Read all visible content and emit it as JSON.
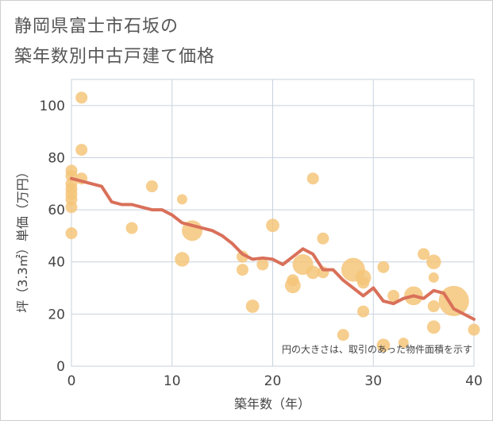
{
  "title": {
    "line1": "静岡県富士市石坂の",
    "line2": "築年数別中古戸建て価格"
  },
  "chart_data": {
    "type": "scatter",
    "xlabel": "築年数（年）",
    "ylabel": "坪（3.3㎡）単価（万円）",
    "xlim": [
      0,
      40
    ],
    "ylim": [
      0,
      110
    ],
    "xticks": [
      0,
      10,
      20,
      30,
      40
    ],
    "yticks": [
      0,
      20,
      40,
      60,
      80,
      100
    ],
    "grid": true,
    "note": "円の大きさは、取引のあった物件面積を示す",
    "colors": {
      "bubble": "#f5c57a",
      "line": "#d9705a",
      "grid": "#c8d2de",
      "plot_bg": "#ffffff"
    },
    "bubbles": [
      {
        "x": 0,
        "y": 75,
        "size": 4
      },
      {
        "x": 0,
        "y": 73,
        "size": 4
      },
      {
        "x": 0,
        "y": 70,
        "size": 4
      },
      {
        "x": 0,
        "y": 68,
        "size": 4
      },
      {
        "x": 0,
        "y": 66,
        "size": 4
      },
      {
        "x": 0,
        "y": 64,
        "size": 4
      },
      {
        "x": 0,
        "y": 61,
        "size": 4
      },
      {
        "x": 0,
        "y": 51,
        "size": 4
      },
      {
        "x": 1,
        "y": 103,
        "size": 4
      },
      {
        "x": 1,
        "y": 83,
        "size": 4
      },
      {
        "x": 1,
        "y": 72,
        "size": 4
      },
      {
        "x": 6,
        "y": 53,
        "size": 4
      },
      {
        "x": 8,
        "y": 69,
        "size": 4
      },
      {
        "x": 11,
        "y": 64,
        "size": 3
      },
      {
        "x": 11,
        "y": 41,
        "size": 6
      },
      {
        "x": 12,
        "y": 52,
        "size": 12
      },
      {
        "x": 17,
        "y": 42,
        "size": 4
      },
      {
        "x": 17,
        "y": 37,
        "size": 4
      },
      {
        "x": 18,
        "y": 23,
        "size": 5
      },
      {
        "x": 19,
        "y": 39,
        "size": 4
      },
      {
        "x": 20,
        "y": 54,
        "size": 5
      },
      {
        "x": 22,
        "y": 31,
        "size": 7
      },
      {
        "x": 22,
        "y": 33,
        "size": 4
      },
      {
        "x": 23,
        "y": 39,
        "size": 12
      },
      {
        "x": 24,
        "y": 72,
        "size": 4
      },
      {
        "x": 24,
        "y": 36,
        "size": 5
      },
      {
        "x": 25,
        "y": 36,
        "size": 4
      },
      {
        "x": 25,
        "y": 49,
        "size": 4
      },
      {
        "x": 27,
        "y": 12,
        "size": 4
      },
      {
        "x": 28,
        "y": 37,
        "size": 16
      },
      {
        "x": 29,
        "y": 34,
        "size": 7
      },
      {
        "x": 29,
        "y": 32,
        "size": 4
      },
      {
        "x": 29,
        "y": 21,
        "size": 4
      },
      {
        "x": 31,
        "y": 38,
        "size": 4
      },
      {
        "x": 31,
        "y": 8,
        "size": 5
      },
      {
        "x": 32,
        "y": 27,
        "size": 4
      },
      {
        "x": 33,
        "y": 9,
        "size": 3
      },
      {
        "x": 34,
        "y": 27,
        "size": 10
      },
      {
        "x": 35,
        "y": 43,
        "size": 4
      },
      {
        "x": 36,
        "y": 40,
        "size": 6
      },
      {
        "x": 36,
        "y": 34,
        "size": 3
      },
      {
        "x": 36,
        "y": 23,
        "size": 4
      },
      {
        "x": 36,
        "y": 15,
        "size": 5
      },
      {
        "x": 38,
        "y": 25,
        "size": 26
      },
      {
        "x": 40,
        "y": 14,
        "size": 4
      }
    ],
    "trend": {
      "x": [
        0,
        1,
        2,
        3,
        4,
        5,
        6,
        7,
        8,
        9,
        10,
        11,
        12,
        13,
        14,
        15,
        16,
        17,
        18,
        19,
        20,
        21,
        22,
        23,
        24,
        25,
        26,
        27,
        28,
        29,
        30,
        31,
        32,
        33,
        34,
        35,
        36,
        37,
        38,
        39,
        40
      ],
      "y": [
        72,
        71,
        70,
        69,
        63,
        62,
        62,
        61,
        60,
        60,
        58,
        55,
        54,
        53,
        52,
        50,
        47,
        43,
        41,
        41.5,
        41,
        39,
        42,
        45,
        43,
        37,
        37,
        33,
        30,
        27,
        30,
        25,
        24,
        26,
        27,
        26,
        29,
        28,
        22,
        20,
        18
      ]
    }
  }
}
